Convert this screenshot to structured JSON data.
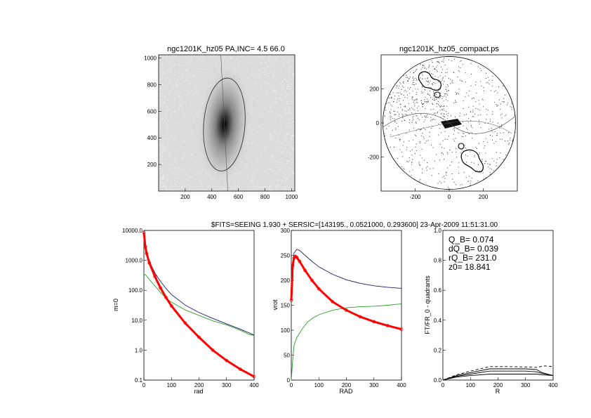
{
  "header": "$FITS=SEEING 1.930 + SERSIC=[143195., 0.0521000, 0.293600]  23-Apr-2009 11:51:31.00",
  "chart_data": [
    {
      "id": "galaxy-image",
      "type": "heatmap",
      "title": "ngc1201K_hz05 PA,INC=  4.5 66.0",
      "xlim": [
        0,
        1024
      ],
      "ylim": [
        0,
        1024
      ],
      "xticks": [
        200,
        400,
        600,
        800,
        1000
      ],
      "yticks": [
        200,
        400,
        600,
        800,
        1000
      ],
      "center": [
        494,
        500
      ],
      "ellipse": {
        "a": 350,
        "b": 155,
        "pa_deg": 4.5
      }
    },
    {
      "id": "compact-image",
      "type": "heatmap",
      "title": "ngc1201K_hz05_compact.ps",
      "xlim": [
        -400,
        400
      ],
      "ylim": [
        -400,
        400
      ],
      "xticks": [
        -200,
        0,
        200
      ],
      "yticks": [
        -200,
        0,
        200
      ],
      "circle_radius": 390
    },
    {
      "id": "surface-profile",
      "type": "line",
      "xlabel": "rad",
      "ylabel": "m=0",
      "xlim": [
        0,
        400
      ],
      "ylim": [
        0.1,
        10000
      ],
      "yscale": "log",
      "xticks": [
        0,
        100,
        200,
        300,
        400
      ],
      "yticks": [
        0.1,
        1.0,
        10.0,
        100.0,
        1000.0,
        10000.0
      ],
      "ytick_labels": [
        "0.1",
        "1.0",
        "10.0",
        "100.0",
        "1000.0",
        "10000.0"
      ],
      "series": [
        {
          "color": "#1a1a6e",
          "x": [
            0,
            5,
            10,
            20,
            40,
            60,
            80,
            100,
            150,
            200,
            250,
            300,
            350,
            400
          ],
          "y": [
            8500,
            3000,
            1800,
            900,
            380,
            200,
            115,
            72,
            32,
            18,
            11.5,
            7.5,
            5.0,
            3.2
          ]
        },
        {
          "color": "#2ca02c",
          "x": [
            0,
            5,
            10,
            20,
            40,
            60,
            80,
            100,
            150,
            200,
            250,
            300,
            330,
            360,
            380,
            400
          ],
          "y": [
            320,
            340,
            300,
            230,
            140,
            85,
            55,
            40,
            22,
            14.5,
            9.5,
            7.0,
            5.5,
            4.2,
            3.4,
            3.1
          ]
        },
        {
          "color": "#ff0000",
          "x": [
            0,
            5,
            10,
            20,
            40,
            60,
            80,
            100,
            150,
            200,
            250,
            300,
            350,
            400
          ],
          "y": [
            8500,
            2900,
            1700,
            820,
            290,
            120,
            58,
            30,
            8.0,
            2.7,
            1.0,
            0.45,
            0.23,
            0.13
          ]
        }
      ]
    },
    {
      "id": "rotation-curve",
      "type": "line",
      "xlabel": "RAD",
      "ylabel": "vrot",
      "xlim": [
        0,
        400
      ],
      "ylim": [
        0,
        300
      ],
      "xticks": [
        0,
        100,
        200,
        300,
        400
      ],
      "yticks": [
        0,
        50,
        100,
        150,
        200,
        250,
        300
      ],
      "series": [
        {
          "color": "#1a1a6e",
          "x": [
            0,
            5,
            10,
            20,
            30,
            50,
            75,
            100,
            150,
            200,
            250,
            300,
            350,
            400
          ],
          "y": [
            160,
            225,
            255,
            262,
            260,
            250,
            238,
            227,
            212,
            201,
            194,
            189,
            186,
            184
          ]
        },
        {
          "color": "#2ca02c",
          "x": [
            0,
            5,
            10,
            20,
            40,
            60,
            80,
            100,
            150,
            200,
            250,
            300,
            350,
            400
          ],
          "y": [
            0,
            40,
            70,
            85,
            103,
            117,
            125,
            131,
            140,
            145,
            147,
            148,
            150,
            153
          ]
        },
        {
          "color": "#ff0000",
          "x": [
            0,
            5,
            10,
            15,
            20,
            30,
            50,
            75,
            100,
            150,
            200,
            250,
            300,
            350,
            400
          ],
          "y": [
            160,
            230,
            245,
            248,
            246,
            238,
            220,
            200,
            183,
            157,
            140,
            127,
            117,
            109,
            102
          ]
        }
      ]
    },
    {
      "id": "fourier-quadrants",
      "type": "line",
      "xlabel": "R",
      "ylabel": "FT/FR_0 - quadrants",
      "xlim": [
        0,
        400
      ],
      "ylim": [
        0,
        1.0
      ],
      "xticks": [
        0,
        100,
        200,
        300,
        400
      ],
      "yticks": [
        0.0,
        0.2,
        0.4,
        0.6,
        0.8,
        1.0
      ],
      "ytick_labels": [
        "0.0",
        "0.2",
        "0.4",
        "0.6",
        "0.8",
        "1.0"
      ],
      "annotations": [
        "Q_B=  0.074",
        "dQ_B=  0.039",
        "rQ_B=  231.0",
        "z0= 18.841"
      ],
      "series": [
        {
          "color": "#000000",
          "x": [
            0,
            50,
            100,
            170,
            230,
            300,
            340,
            360,
            400
          ],
          "y": [
            0.0,
            0.03,
            0.05,
            0.075,
            0.075,
            0.075,
            0.07,
            0.05,
            0.03
          ]
        },
        {
          "color": "#000000",
          "x": [
            0,
            50,
            100,
            170,
            230,
            300,
            340,
            360,
            400
          ],
          "y": [
            0.0,
            0.025,
            0.04,
            0.06,
            0.06,
            0.06,
            0.055,
            0.045,
            0.03
          ]
        },
        {
          "color": "#000000",
          "x": [
            0,
            50,
            100,
            170,
            230,
            300,
            340,
            360,
            400
          ],
          "y": [
            0.0,
            0.02,
            0.03,
            0.04,
            0.04,
            0.04,
            0.04,
            0.035,
            0.03
          ]
        },
        {
          "color": "#000000",
          "dashed": true,
          "x": [
            0,
            50,
            100,
            170,
            230,
            300,
            340,
            370,
            400
          ],
          "y": [
            0.0,
            0.035,
            0.06,
            0.09,
            0.09,
            0.088,
            0.085,
            0.095,
            0.09
          ]
        }
      ]
    }
  ]
}
